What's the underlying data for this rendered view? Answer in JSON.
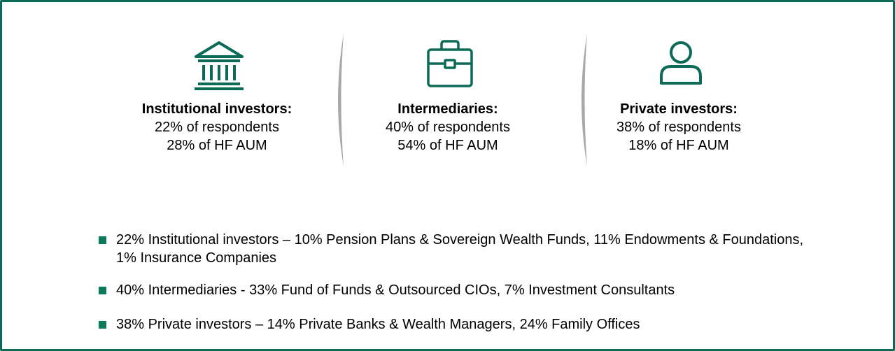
{
  "columns": [
    {
      "title": "Institutional investors:",
      "lines": [
        "22% of respondents",
        "28% of HF AUM"
      ]
    },
    {
      "title": "Intermediaries:",
      "lines": [
        "40% of respondents",
        "54% of HF AUM"
      ]
    },
    {
      "title": "Private investors:",
      "lines": [
        "38% of respondents",
        "18% of HF AUM"
      ]
    }
  ],
  "bullets": [
    "22% Institutional investors – 10% Pension Plans & Sovereign Wealth Funds, 11% Endowments & Foundations, 1% Insurance Companies",
    "40% Intermediaries - 33% Fund of Funds & Outsourced CIOs, 7% Investment Consultants",
    "38% Private investors – 14% Private Banks & Wealth Managers, 24% Family Offices"
  ]
}
